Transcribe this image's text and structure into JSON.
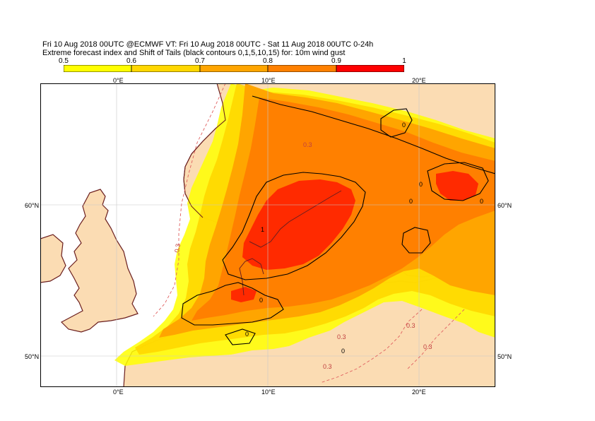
{
  "title_line1": "Fri 10 Aug 2018 00UTC @ECMWF VT: Fri 10 Aug 2018 00UTC - Sat 11 Aug 2018 00UTC  0-24h",
  "title_line2": "Extreme forecast index and Shift of Tails (black contours 0,1,5,10,15) for: 10m wind gust",
  "colorbar": {
    "labels": [
      "0.5",
      "0.6",
      "0.7",
      "0.8",
      "0.9",
      "1"
    ],
    "colors": [
      "#ffff00",
      "#ffd700",
      "#ffa500",
      "#ff8000",
      "#ff2a00"
    ]
  },
  "axes": {
    "lon_top": [
      "0°E",
      "10°E",
      "20°E"
    ],
    "lon_bottom": [
      "0°E",
      "10°E",
      "20°E"
    ],
    "lat_left": [
      "60°N",
      "50°N"
    ],
    "lat_right": [
      "60°N",
      "50°N"
    ]
  },
  "contour_labels": {
    "sot": [
      "0",
      "1",
      "0",
      "0",
      "0",
      "0",
      "0",
      "0"
    ],
    "efi_dashed": [
      "0.3",
      "0.3",
      "0.3",
      "0.3",
      "0.3",
      "0.3"
    ]
  },
  "colors": {
    "land": "#fbdcb3",
    "sea": "#ffffff",
    "coast": "#6b1f1f",
    "dashed": "#e06060"
  }
}
